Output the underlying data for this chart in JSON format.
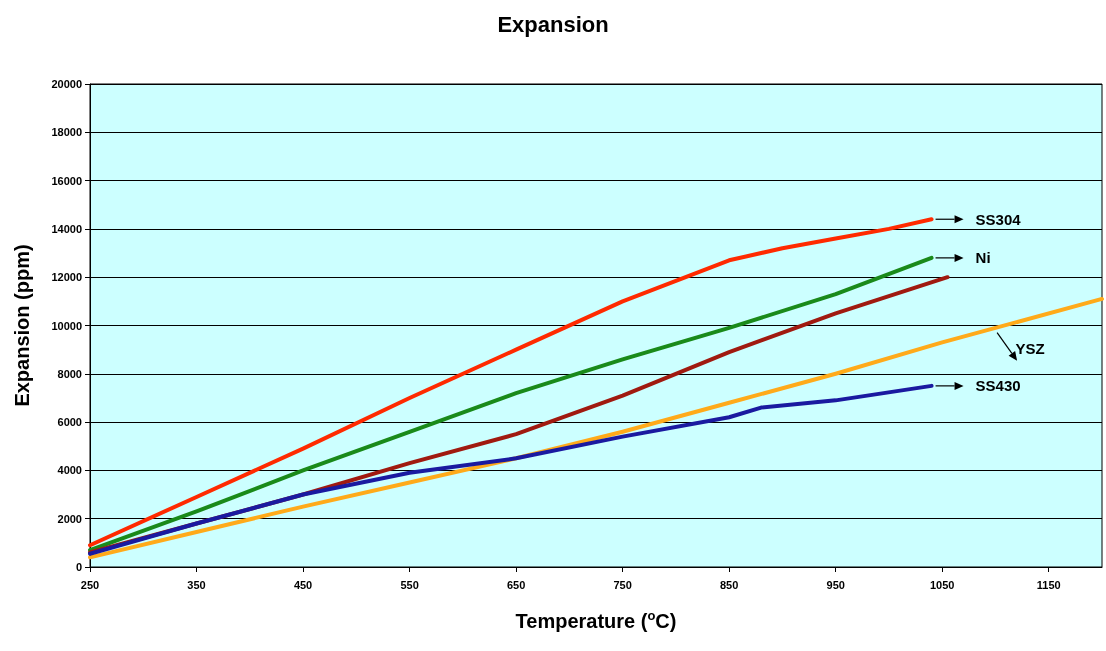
{
  "chart_data": {
    "type": "line",
    "title": "Expansion",
    "xlabel": "Temperature ($^{o}$C)",
    "ylabel": "Expansion (ppm)",
    "xlim": [
      250,
      1200
    ],
    "xticks": [
      250,
      350,
      450,
      550,
      650,
      750,
      850,
      950,
      1050,
      1150
    ],
    "ylim": [
      0,
      20000
    ],
    "yticks": [
      0,
      2000,
      4000,
      6000,
      8000,
      10000,
      12000,
      14000,
      16000,
      18000,
      20000
    ],
    "grid": "y",
    "legend": false,
    "marker": "none",
    "line_style": "solid",
    "series": [
      {
        "name": "SS304",
        "color": "#ff2a00",
        "x": [
          250,
          350,
          450,
          550,
          650,
          750,
          850,
          900,
          950,
          1000,
          1040
        ],
        "values": [
          900,
          2900,
          4900,
          7000,
          9000,
          11000,
          12700,
          13200,
          13600,
          14000,
          14400
        ]
      },
      {
        "name": "Ni",
        "color": "#1a8a1a",
        "x": [
          250,
          350,
          450,
          550,
          650,
          750,
          850,
          950,
          1040
        ],
        "values": [
          700,
          2300,
          4000,
          5600,
          7200,
          8600,
          9900,
          11300,
          12800
        ]
      },
      {
        "color": "#a01a10",
        "x": [
          250,
          350,
          450,
          550,
          650,
          750,
          850,
          950,
          1055
        ],
        "values": [
          600,
          1800,
          3000,
          4300,
          5500,
          7100,
          8900,
          10500,
          12000
        ]
      },
      {
        "name": "YSZ",
        "color": "#ffaa1a",
        "x": [
          250,
          350,
          450,
          550,
          650,
          750,
          850,
          950,
          1050,
          1200
        ],
        "values": [
          400,
          1450,
          2500,
          3500,
          4500,
          5600,
          6800,
          8000,
          9300,
          11100
        ]
      },
      {
        "name": "SS430",
        "color": "#1a1aa0",
        "x": [
          250,
          350,
          450,
          550,
          650,
          750,
          850,
          880,
          950,
          1040
        ],
        "values": [
          550,
          1800,
          3000,
          3900,
          4500,
          5400,
          6200,
          6600,
          6900,
          7500
        ]
      }
    ]
  }
}
